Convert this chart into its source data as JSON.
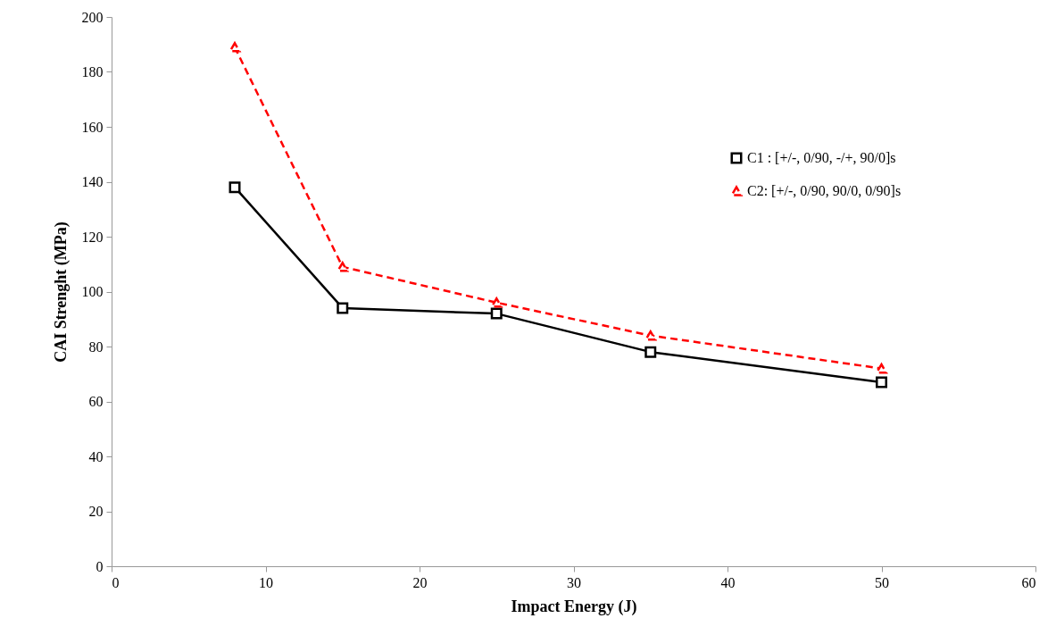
{
  "chart_data": {
    "type": "line",
    "xlabel": "Impact Energy (J)",
    "ylabel": "CAI Strenght (MPa)",
    "xlim": [
      0,
      60
    ],
    "xticks": [
      0,
      10,
      20,
      30,
      40,
      50,
      60
    ],
    "ylim": [
      0,
      200
    ],
    "yticks": [
      0,
      20,
      40,
      60,
      80,
      100,
      120,
      140,
      160,
      180,
      200
    ],
    "grid": false,
    "legend": "top right",
    "series": [
      {
        "name": "C1 : [+/-, 0/90, -/+, 90/0]s",
        "color": "#000000",
        "marker": "square",
        "line_style": "solid",
        "x": [
          8,
          15,
          25,
          35,
          50
        ],
        "values": [
          138,
          94,
          92,
          78,
          67
        ]
      },
      {
        "name": "C2: [+/-, 0/90, 90/0, 0/90]s",
        "color": "#ff0000",
        "marker": "triangle",
        "line_style": "dashed",
        "x": [
          8,
          15,
          25,
          35,
          50
        ],
        "values": [
          189,
          109,
          96,
          84,
          72
        ]
      }
    ]
  }
}
